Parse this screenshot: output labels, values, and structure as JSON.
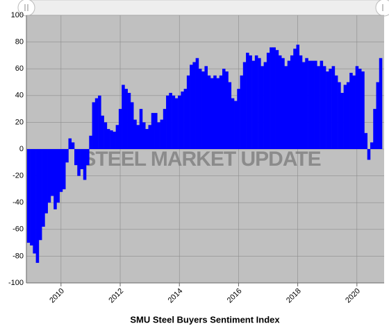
{
  "chart_data": {
    "type": "bar",
    "title": "SMU Steel Buyers Sentiment Index",
    "watermark": "STEEL MARKET UPDATE",
    "color": "#0000ff",
    "background": "#c0c0c0",
    "grid": true,
    "xlim": [
      2008.83,
      2020.92
    ],
    "xticks": [
      2010,
      2012,
      2014,
      2016,
      2018,
      2020
    ],
    "ylim": [
      -100,
      100
    ],
    "yticks": [
      -100,
      -80,
      -60,
      -40,
      -20,
      0,
      20,
      40,
      60,
      80,
      100
    ],
    "x": [
      2008.9,
      2009.0,
      2009.1,
      2009.2,
      2009.3,
      2009.4,
      2009.5,
      2009.6,
      2009.7,
      2009.8,
      2009.9,
      2010.0,
      2010.1,
      2010.2,
      2010.3,
      2010.4,
      2010.5,
      2010.6,
      2010.7,
      2010.8,
      2010.9,
      2011.0,
      2011.1,
      2011.2,
      2011.3,
      2011.4,
      2011.5,
      2011.6,
      2011.7,
      2011.8,
      2011.9,
      2012.0,
      2012.1,
      2012.2,
      2012.3,
      2012.4,
      2012.5,
      2012.6,
      2012.7,
      2012.8,
      2012.9,
      2013.0,
      2013.1,
      2013.2,
      2013.3,
      2013.4,
      2013.5,
      2013.6,
      2013.7,
      2013.8,
      2013.9,
      2014.0,
      2014.1,
      2014.2,
      2014.3,
      2014.4,
      2014.5,
      2014.6,
      2014.7,
      2014.8,
      2014.9,
      2015.0,
      2015.1,
      2015.2,
      2015.3,
      2015.4,
      2015.5,
      2015.6,
      2015.7,
      2015.8,
      2015.9,
      2016.0,
      2016.1,
      2016.2,
      2016.3,
      2016.4,
      2016.5,
      2016.6,
      2016.7,
      2016.8,
      2016.9,
      2017.0,
      2017.1,
      2017.2,
      2017.3,
      2017.4,
      2017.5,
      2017.6,
      2017.7,
      2017.8,
      2017.9,
      2018.0,
      2018.1,
      2018.2,
      2018.3,
      2018.4,
      2018.5,
      2018.6,
      2018.7,
      2018.8,
      2018.9,
      2019.0,
      2019.1,
      2019.2,
      2019.3,
      2019.4,
      2019.5,
      2019.6,
      2019.7,
      2019.8,
      2019.9,
      2020.0,
      2020.1,
      2020.2,
      2020.3,
      2020.4,
      2020.5,
      2020.6,
      2020.7,
      2020.8
    ],
    "values": [
      -70,
      -72,
      -78,
      -85,
      -68,
      -58,
      -48,
      -40,
      -35,
      -45,
      -40,
      -32,
      -30,
      -10,
      8,
      5,
      -12,
      -20,
      -15,
      -23,
      -12,
      10,
      35,
      38,
      40,
      25,
      20,
      15,
      14,
      13,
      18,
      30,
      48,
      45,
      42,
      35,
      22,
      18,
      30,
      20,
      15,
      18,
      27,
      27,
      20,
      22,
      30,
      40,
      42,
      40,
      38,
      40,
      43,
      45,
      55,
      63,
      65,
      68,
      60,
      58,
      62,
      55,
      53,
      55,
      53,
      55,
      60,
      58,
      50,
      38,
      36,
      45,
      55,
      65,
      72,
      70,
      66,
      70,
      68,
      62,
      65,
      72,
      76,
      76,
      74,
      70,
      68,
      62,
      66,
      70,
      75,
      78,
      70,
      65,
      68,
      66,
      66,
      66,
      62,
      66,
      62,
      58,
      60,
      62,
      55,
      50,
      42,
      48,
      50,
      57,
      55,
      62,
      60,
      58,
      12,
      -8,
      5,
      30,
      50,
      68
    ]
  }
}
